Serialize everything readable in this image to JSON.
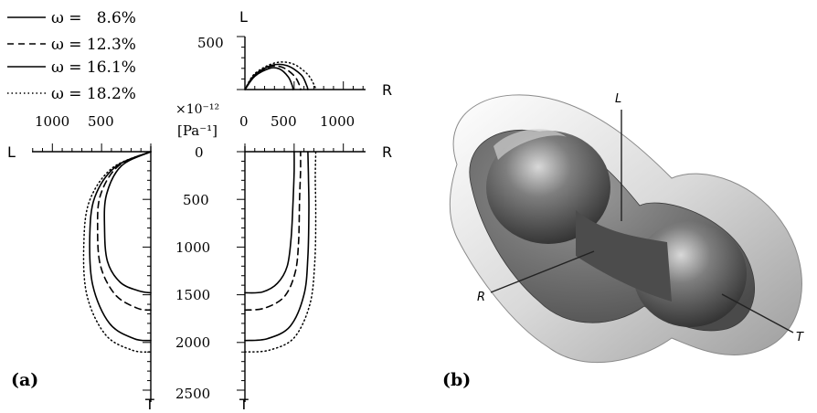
{
  "chart_data": [
    {
      "type": "line",
      "panel_label": "(a)",
      "unit_label": "[Pa⁻¹]",
      "unit_scale": "×10⁻¹²",
      "legend": {
        "placement": "top-left",
        "entries": [
          {
            "label": "ω =   8.6%",
            "style": "solid"
          },
          {
            "label": "ω = 12.3%",
            "style": "dashed"
          },
          {
            "label": "ω = 16.1%",
            "style": "solid"
          },
          {
            "label": "ω = 18.2%",
            "style": "dotted"
          }
        ]
      },
      "axes": {
        "L_axis_upper": {
          "label": "L",
          "ticks": [
            "500"
          ],
          "range": [
            0,
            500
          ]
        },
        "R_axis_upper": {
          "label": "R",
          "ticks": [
            "0",
            "500",
            "1000"
          ],
          "range": [
            0,
            1200
          ]
        },
        "L_axis_left": {
          "label": "L",
          "ticks": [
            "1000",
            "500"
          ],
          "range": [
            0,
            1200
          ]
        },
        "R_axis_right": {
          "label": "R",
          "ticks": [
            "0",
            "500",
            "1000"
          ],
          "range": [
            0,
            1200
          ]
        },
        "T_axis": {
          "label": "T",
          "ticks": [
            "0",
            "500",
            "1000",
            "1500",
            "2000",
            "2500"
          ],
          "range": [
            0,
            2500
          ]
        }
      },
      "series": [
        {
          "style": "solid",
          "LR_plane": [
            [
              0,
              0
            ],
            [
              100,
              125
            ],
            [
              250,
              200
            ],
            [
              350,
              195
            ],
            [
              440,
              120
            ],
            [
              480,
              40
            ],
            [
              490,
              0
            ]
          ],
          "LT_plane": [
            [
              0,
              0
            ],
            [
              300,
              150
            ],
            [
              450,
              450
            ],
            [
              470,
              800
            ],
            [
              440,
              1150
            ],
            [
              310,
              1370
            ],
            [
              120,
              1460
            ],
            [
              0,
              1480
            ]
          ],
          "RT_plane": [
            [
              0,
              1480
            ],
            [
              180,
              1470
            ],
            [
              330,
              1380
            ],
            [
              430,
              1200
            ],
            [
              470,
              900
            ],
            [
              490,
              500
            ],
            [
              500,
              200
            ],
            [
              500,
              0
            ]
          ]
        },
        {
          "style": "dashed",
          "LR_plane": [
            [
              0,
              0
            ],
            [
              100,
              130
            ],
            [
              250,
              215
            ],
            [
              380,
              210
            ],
            [
              500,
              130
            ],
            [
              555,
              40
            ],
            [
              565,
              0
            ]
          ],
          "LT_plane": [
            [
              0,
              0
            ],
            [
              330,
              150
            ],
            [
              510,
              450
            ],
            [
              540,
              800
            ],
            [
              510,
              1200
            ],
            [
              360,
              1500
            ],
            [
              140,
              1640
            ],
            [
              0,
              1660
            ]
          ],
          "RT_plane": [
            [
              0,
              1660
            ],
            [
              200,
              1640
            ],
            [
              400,
              1520
            ],
            [
              510,
              1270
            ],
            [
              545,
              950
            ],
            [
              555,
              500
            ],
            [
              565,
              200
            ],
            [
              565,
              0
            ]
          ]
        },
        {
          "style": "solid",
          "LR_plane": [
            [
              0,
              0
            ],
            [
              100,
              140
            ],
            [
              280,
              230
            ],
            [
              430,
              225
            ],
            [
              570,
              140
            ],
            [
              625,
              45
            ],
            [
              640,
              0
            ]
          ],
          "LT_plane": [
            [
              0,
              0
            ],
            [
              360,
              160
            ],
            [
              570,
              480
            ],
            [
              620,
              900
            ],
            [
              590,
              1400
            ],
            [
              420,
              1800
            ],
            [
              170,
              1960
            ],
            [
              0,
              1980
            ]
          ],
          "RT_plane": [
            [
              0,
              1980
            ],
            [
              230,
              1960
            ],
            [
              460,
              1830
            ],
            [
              600,
              1500
            ],
            [
              640,
              1100
            ],
            [
              650,
              600
            ],
            [
              645,
              250
            ],
            [
              640,
              0
            ]
          ]
        },
        {
          "style": "dotted",
          "LR_plane": [
            [
              0,
              0
            ],
            [
              100,
              150
            ],
            [
              300,
              250
            ],
            [
              480,
              245
            ],
            [
              630,
              150
            ],
            [
              700,
              50
            ],
            [
              720,
              0
            ]
          ],
          "LT_plane": [
            [
              0,
              0
            ],
            [
              390,
              170
            ],
            [
              620,
              510
            ],
            [
              680,
              950
            ],
            [
              650,
              1500
            ],
            [
              460,
              1920
            ],
            [
              190,
              2080
            ],
            [
              0,
              2100
            ]
          ],
          "RT_plane": [
            [
              0,
              2100
            ],
            [
              250,
              2080
            ],
            [
              500,
              1950
            ],
            [
              660,
              1600
            ],
            [
              710,
              1150
            ],
            [
              720,
              650
            ],
            [
              715,
              280
            ],
            [
              720,
              0
            ]
          ]
        }
      ]
    },
    {
      "type": "other",
      "panel_label": "(b)",
      "description_labels": [
        "L",
        "R",
        "T"
      ]
    }
  ]
}
